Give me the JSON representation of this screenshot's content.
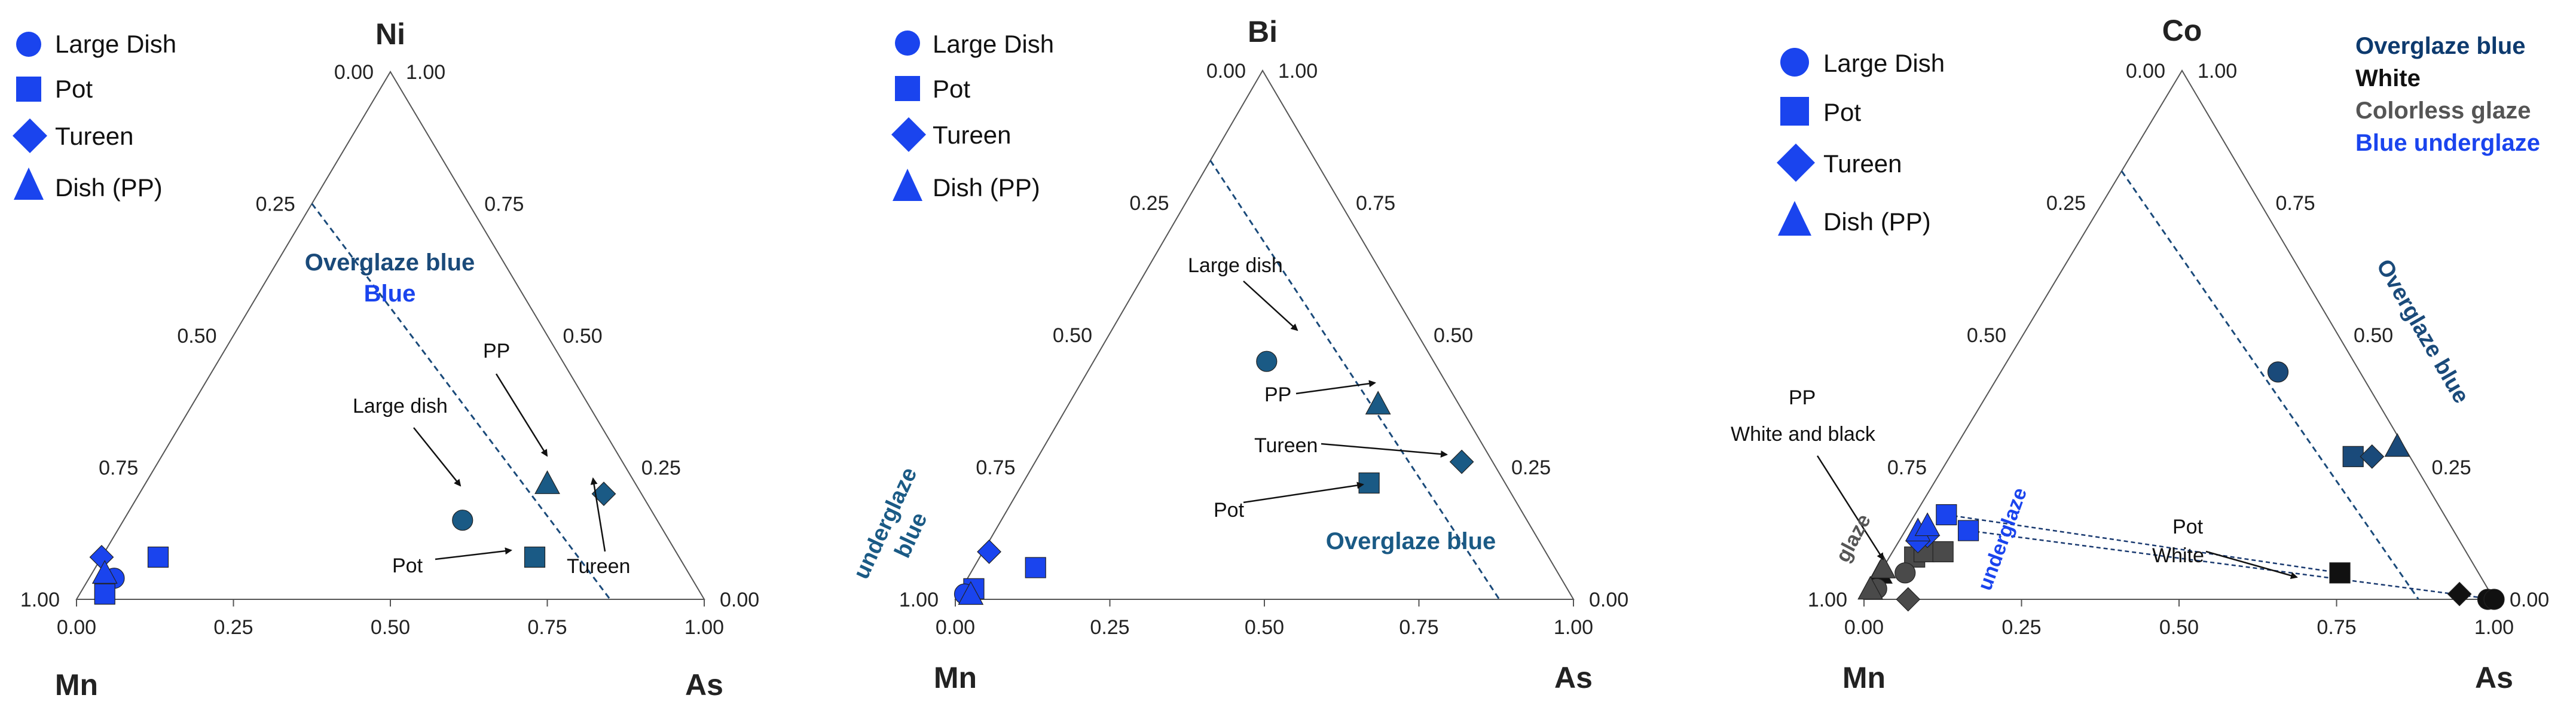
{
  "chart_data": [
    {
      "type": "ternary-scatter",
      "apices": {
        "top": "Ni",
        "left": "Mn",
        "right": "As"
      },
      "ticks": {
        "bottom": [
          "0.00",
          "0.25",
          "0.50",
          "0.75",
          "1.00"
        ],
        "left": [
          "1.00",
          "0.75",
          "0.50",
          "0.25",
          "0.00"
        ],
        "right": [
          "1.00",
          "0.75",
          "0.50",
          "0.25",
          "0.00"
        ]
      },
      "legend": [
        {
          "label": "Large Dish",
          "marker": "circle"
        },
        {
          "label": "Pot",
          "marker": "square"
        },
        {
          "label": "Tureen",
          "marker": "diamond"
        },
        {
          "label": "Dish (PP)",
          "marker": "triangle"
        }
      ],
      "series": [
        {
          "name": "Overglaze blue",
          "color": "#1a5a85",
          "points": [
            {
              "marker": "circle",
              "mn": 0.31,
              "ni": 0.15,
              "as": 0.54
            },
            {
              "marker": "square",
              "mn": 0.23,
              "ni": 0.08,
              "as": 0.69
            },
            {
              "marker": "triangle",
              "mn": 0.14,
              "ni": 0.22,
              "as": 0.64
            },
            {
              "marker": "diamond",
              "mn": 0.06,
              "ni": 0.2,
              "as": 0.74
            }
          ]
        },
        {
          "name": "Blue underglaze",
          "color": "#1a44ee",
          "points": [
            {
              "marker": "circle",
              "mn": 0.92,
              "ni": 0.04,
              "as": 0.04
            },
            {
              "marker": "circle",
              "mn": 0.94,
              "ni": 0.03,
              "as": 0.03
            },
            {
              "marker": "square",
              "mn": 0.83,
              "ni": 0.08,
              "as": 0.09
            },
            {
              "marker": "square",
              "mn": 0.95,
              "ni": 0.01,
              "as": 0.04
            },
            {
              "marker": "diamond",
              "mn": 0.92,
              "ni": 0.08,
              "as": 0.0
            },
            {
              "marker": "triangle",
              "mn": 0.93,
              "ni": 0.05,
              "as": 0.02
            }
          ]
        }
      ],
      "boundary": {
        "from": {
          "mn": 0.25,
          "ni": 0.75,
          "as": 0.0
        },
        "to": {
          "mn": 0.15,
          "ni": 0.0,
          "as": 0.85
        }
      },
      "annotations": [
        {
          "text": "Large dish"
        },
        {
          "text": "PP"
        },
        {
          "text": "Pot"
        },
        {
          "text": "Tureen"
        }
      ],
      "region_labels": [
        {
          "text": "Overglaze blue",
          "color": "#1a4a7a"
        },
        {
          "text": "Blue",
          "color": "#1a44ee"
        }
      ]
    },
    {
      "type": "ternary-scatter",
      "apices": {
        "top": "Bi",
        "left": "Mn",
        "right": "As"
      },
      "ticks": {
        "bottom": [
          "0.00",
          "0.25",
          "0.50",
          "0.75",
          "1.00"
        ],
        "left": [
          "1.00",
          "0.75",
          "0.50",
          "0.25",
          "0.00"
        ],
        "right": [
          "1.00",
          "0.75",
          "0.50",
          "0.25",
          "0.00"
        ]
      },
      "legend": [
        {
          "label": "Large Dish",
          "marker": "circle"
        },
        {
          "label": "Pot",
          "marker": "square"
        },
        {
          "label": "Tureen",
          "marker": "diamond"
        },
        {
          "label": "Dish (PP)",
          "marker": "triangle"
        }
      ],
      "series": [
        {
          "name": "Overglaze blue",
          "color": "#1a5a85",
          "points": [
            {
              "marker": "circle",
              "mn": 0.27,
              "bi": 0.45,
              "as": 0.28
            },
            {
              "marker": "square",
              "mn": 0.22,
              "bi": 0.22,
              "as": 0.56
            },
            {
              "marker": "triangle",
              "mn": 0.13,
              "bi": 0.37,
              "as": 0.5
            },
            {
              "marker": "diamond",
              "mn": 0.05,
              "bi": 0.26,
              "as": 0.69
            }
          ]
        },
        {
          "name": "Blue underglaze",
          "color": "#1a44ee",
          "points": [
            {
              "marker": "square",
              "mn": 0.84,
              "bi": 0.06,
              "as": 0.1
            },
            {
              "marker": "square",
              "mn": 0.96,
              "bi": 0.02,
              "as": 0.02
            },
            {
              "marker": "circle",
              "mn": 0.98,
              "bi": 0.01,
              "as": 0.01
            },
            {
              "marker": "diamond",
              "mn": 0.9,
              "bi": 0.09,
              "as": 0.01
            },
            {
              "marker": "triangle",
              "mn": 0.97,
              "bi": 0.01,
              "as": 0.02
            }
          ]
        }
      ],
      "boundary": {
        "from": {
          "mn": 0.17,
          "bi": 0.83,
          "as": 0.0
        },
        "to": {
          "mn": 0.12,
          "bi": 0.0,
          "as": 0.88
        }
      },
      "annotations": [
        {
          "text": "Large dish"
        },
        {
          "text": "PP"
        },
        {
          "text": "Tureen"
        },
        {
          "text": "Pot"
        }
      ],
      "region_labels": [
        {
          "text": "underglaze",
          "color": "#1a5a85"
        },
        {
          "text": "blue",
          "color": "#1a5a85"
        },
        {
          "text": "Overglaze blue",
          "color": "#1a5a85"
        }
      ]
    },
    {
      "type": "ternary-scatter",
      "apices": {
        "top": "Co",
        "left": "Mn",
        "right": "As"
      },
      "ticks": {
        "bottom": [
          "0.00",
          "0.25",
          "0.50",
          "0.75",
          "1.00"
        ],
        "left": [
          "1.00",
          "0.75",
          "0.50",
          "0.25",
          "0.00"
        ],
        "right": [
          "1.00",
          "0.75",
          "0.50",
          "0.25",
          "0.00"
        ]
      },
      "legend": [
        {
          "label": "Large Dish",
          "marker": "circle"
        },
        {
          "label": "Pot",
          "marker": "square"
        },
        {
          "label": "Tureen",
          "marker": "diamond"
        },
        {
          "label": "Dish (PP)",
          "marker": "triangle"
        }
      ],
      "color_legend": [
        {
          "label": "Overglaze blue",
          "color": "#0d3a6e"
        },
        {
          "label": "White",
          "color": "#111111"
        },
        {
          "label": "Colorless glaze",
          "color": "#555555"
        },
        {
          "label": "Blue underglaze",
          "color": "#1a44ee"
        }
      ],
      "series": [
        {
          "name": "Overglaze blue",
          "color": "#1a4a7a",
          "points": [
            {
              "marker": "circle",
              "mn": 0.13,
              "co": 0.43,
              "as": 0.44
            },
            {
              "marker": "square",
              "mn": 0.09,
              "co": 0.27,
              "as": 0.64
            },
            {
              "marker": "triangle",
              "mn": 0.01,
              "co": 0.29,
              "as": 0.7
            },
            {
              "marker": "diamond",
              "mn": 0.06,
              "co": 0.27,
              "as": 0.67
            }
          ]
        },
        {
          "name": "White",
          "color": "#111111",
          "points": [
            {
              "marker": "square",
              "mn": 0.22,
              "co": 0.05,
              "as": 0.73
            },
            {
              "marker": "diamond",
              "mn": 0.05,
              "co": 0.01,
              "as": 0.94
            },
            {
              "marker": "circle",
              "mn": 0.01,
              "co": 0.0,
              "as": 0.99
            },
            {
              "marker": "circle",
              "mn": 0.0,
              "co": 0.0,
              "as": 1.0
            },
            {
              "marker": "triangle",
              "mn": 0.95,
              "co": 0.05,
              "as": 0.0
            }
          ]
        },
        {
          "name": "Colorless glaze",
          "color": "#4a4a4a",
          "points": [
            {
              "marker": "square",
              "mn": 0.88,
              "co": 0.08,
              "as": 0.04
            },
            {
              "marker": "square",
              "mn": 0.86,
              "co": 0.09,
              "as": 0.05
            },
            {
              "marker": "square",
              "mn": 0.83,
              "co": 0.09,
              "as": 0.08
            },
            {
              "marker": "circle",
              "mn": 0.91,
              "co": 0.05,
              "as": 0.04
            },
            {
              "marker": "circle",
              "mn": 0.97,
              "co": 0.02,
              "as": 0.01
            },
            {
              "marker": "diamond",
              "mn": 0.93,
              "co": 0.0,
              "as": 0.07
            },
            {
              "marker": "triangle",
              "mn": 0.98,
              "co": 0.02,
              "as": 0.0
            },
            {
              "marker": "triangle",
              "mn": 0.94,
              "co": 0.06,
              "as": 0.0
            }
          ]
        },
        {
          "name": "Blue underglaze",
          "color": "#1a44ee",
          "points": [
            {
              "marker": "square",
              "mn": 0.79,
              "co": 0.16,
              "as": 0.05
            },
            {
              "marker": "square",
              "mn": 0.77,
              "co": 0.13,
              "as": 0.1
            },
            {
              "marker": "diamond",
              "mn": 0.84,
              "co": 0.12,
              "as": 0.04
            },
            {
              "marker": "diamond",
              "mn": 0.86,
              "co": 0.11,
              "as": 0.03
            },
            {
              "marker": "triangle",
              "mn": 0.85,
              "co": 0.13,
              "as": 0.02
            },
            {
              "marker": "triangle",
              "mn": 0.83,
              "co": 0.14,
              "as": 0.03
            }
          ]
        }
      ],
      "boundary": {
        "from": {
          "mn": 0.19,
          "co": 0.81,
          "as": 0.0
        },
        "to": {
          "mn": 0.12,
          "co": 0.0,
          "as": 0.88
        }
      },
      "trend_lines": [
        {
          "from": {
            "mn": 0.77,
            "co": 0.13,
            "as": 0.1
          },
          "to": {
            "mn": 0.0,
            "co": 0.0,
            "as": 1.0
          }
        },
        {
          "from": {
            "mn": 0.79,
            "co": 0.16,
            "as": 0.05
          },
          "to": {
            "mn": 0.22,
            "co": 0.05,
            "as": 0.73
          }
        }
      ],
      "annotations": [
        {
          "text": "PP"
        },
        {
          "text": "White and black"
        },
        {
          "text": "Pot"
        },
        {
          "text": "White"
        }
      ],
      "region_labels": [
        {
          "text": "Overglaze blue",
          "color": "#1a4a7a"
        },
        {
          "text": "glaze",
          "color": "#555555"
        },
        {
          "text": "underglaze",
          "color": "#1a44ee"
        }
      ]
    }
  ]
}
